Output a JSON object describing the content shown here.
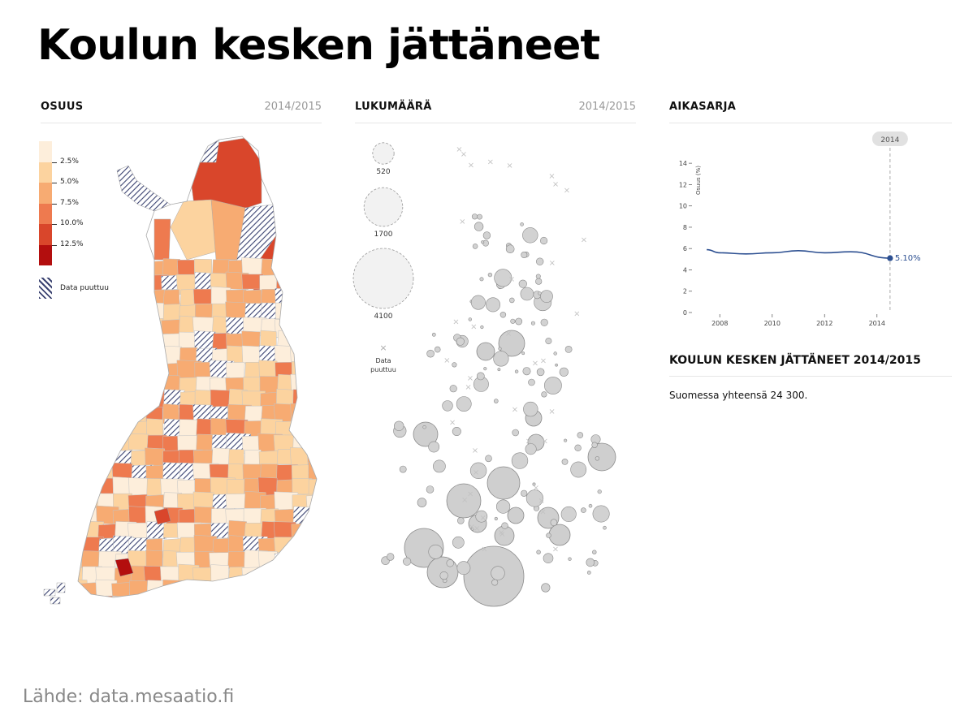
{
  "title": "Koulun kesken jättäneet",
  "panels": {
    "osuus": {
      "label": "OSUUS",
      "period": "2014/2015"
    },
    "lukumaara": {
      "label": "LUKUMÄÄRÄ",
      "period": "2014/2015"
    },
    "aikasarja": {
      "label": "AIKASARJA"
    }
  },
  "legend": {
    "bins": [
      {
        "label": "2.5%",
        "color": "#fdeedb"
      },
      {
        "label": "5.0%",
        "color": "#fcd39f"
      },
      {
        "label": "7.5%",
        "color": "#f7ab72"
      },
      {
        "label": "10.0%",
        "color": "#ee7a4f"
      },
      {
        "label": "12.5%",
        "color": "#d9462b"
      },
      {
        "label": "",
        "color": "#b30e0e"
      }
    ],
    "missing_label": "Data puuttuu"
  },
  "bubble_legend": {
    "sizes": [
      520,
      1700,
      4100
    ],
    "labels": [
      "520",
      "1700",
      "4100"
    ],
    "missing_label": "Data puuttuu"
  },
  "chart_data": {
    "type": "line",
    "x": [
      2007.5,
      2008,
      2009,
      2010,
      2011,
      2012,
      2013,
      2014.5
    ],
    "series": [
      {
        "values": [
          5.9,
          5.6,
          5.5,
          5.6,
          5.8,
          5.6,
          5.7,
          5.1
        ]
      }
    ],
    "xticks": [
      "2008",
      "2010",
      "2012",
      "2014"
    ],
    "yticks": [
      "0",
      "2",
      "4",
      "6",
      "8",
      "10",
      "12",
      "14"
    ],
    "ylabel": "Osuus (%)",
    "ylim": [
      0,
      15
    ],
    "marker_label": "2014",
    "end_value_label": "5.10%",
    "color": "#2c4f91"
  },
  "summary": {
    "heading": "KOULUN KESKEN JÄTTÄNEET 2014/2015",
    "text": "Suomessa yhteensä 24 300."
  },
  "source": "Lähde: data.mesaatio.fi"
}
